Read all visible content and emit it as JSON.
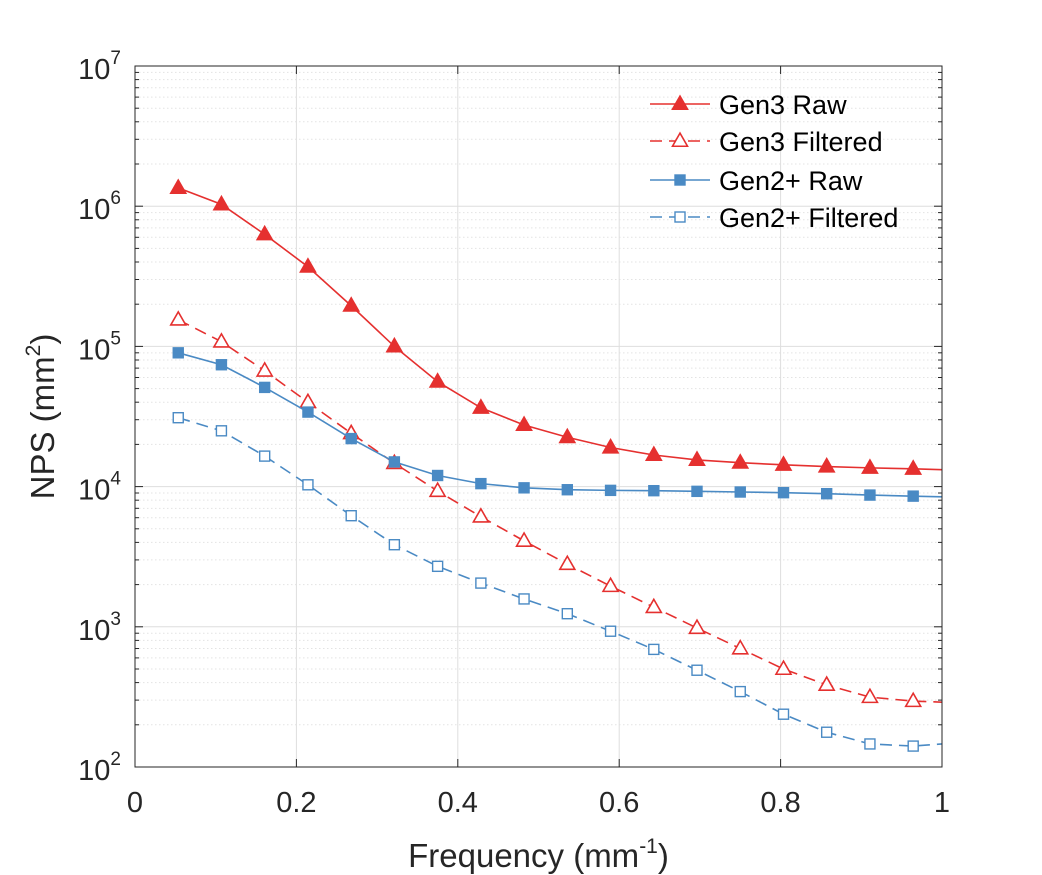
{
  "chart_data": {
    "type": "line",
    "xlabel": "Frequency (mm",
    "xlabel_sup": "-1",
    "xlabel_close": ")",
    "ylabel": "NPS (mm",
    "ylabel_sup": "2",
    "ylabel_close": ")",
    "xlim": [
      0,
      1
    ],
    "ylim": [
      100,
      10000000
    ],
    "yscale": "log",
    "grid": true,
    "legend_position": "top-right",
    "x_ticks": [
      {
        "value": 0,
        "label": "0"
      },
      {
        "value": 0.2,
        "label": "0.2"
      },
      {
        "value": 0.4,
        "label": "0.4"
      },
      {
        "value": 0.6,
        "label": "0.6"
      },
      {
        "value": 0.8,
        "label": "0.8"
      },
      {
        "value": 1,
        "label": "1"
      }
    ],
    "y_ticks": [
      {
        "value": 100,
        "base": "10",
        "exp": "2"
      },
      {
        "value": 1000,
        "base": "10",
        "exp": "3"
      },
      {
        "value": 10000,
        "base": "10",
        "exp": "4"
      },
      {
        "value": 100000,
        "base": "10",
        "exp": "5"
      },
      {
        "value": 1000000,
        "base": "10",
        "exp": "6"
      },
      {
        "value": 10000000,
        "base": "10",
        "exp": "7"
      }
    ],
    "x": [
      0.0536,
      0.1071,
      0.1607,
      0.2143,
      0.2679,
      0.3214,
      0.375,
      0.4286,
      0.4821,
      0.5357,
      0.5893,
      0.6429,
      0.6964,
      0.75,
      0.8036,
      0.8571,
      0.9107,
      0.9643,
      1.0
    ],
    "series": [
      {
        "name": "Gen3 Raw",
        "color": "#e5302f",
        "marker": "triangle",
        "filled": true,
        "dashed": false,
        "values": [
          1350000,
          1030000,
          630000,
          370000,
          195000,
          100000,
          56000,
          36500,
          27500,
          22500,
          19000,
          16800,
          15500,
          14800,
          14300,
          13900,
          13600,
          13400,
          13200
        ]
      },
      {
        "name": "Gen3 Filtered",
        "color": "#e5302f",
        "marker": "triangle",
        "filled": false,
        "dashed": true,
        "values": [
          155000,
          108000,
          67000,
          40000,
          24000,
          14700,
          9300,
          6100,
          4100,
          2800,
          1950,
          1380,
          980,
          700,
          500,
          385,
          315,
          295,
          290
        ]
      },
      {
        "name": "Gen2+ Raw",
        "color": "#4a8ac4",
        "marker": "square",
        "filled": true,
        "dashed": false,
        "values": [
          90000,
          74000,
          51000,
          34000,
          22000,
          15000,
          12000,
          10500,
          9800,
          9500,
          9400,
          9350,
          9250,
          9150,
          9050,
          8900,
          8700,
          8550,
          8450
        ]
      },
      {
        "name": "Gen2+ Filtered",
        "color": "#4a8ac4",
        "marker": "square",
        "filled": false,
        "dashed": true,
        "values": [
          31000,
          25000,
          16500,
          10300,
          6200,
          3850,
          2700,
          2050,
          1580,
          1240,
          930,
          690,
          490,
          345,
          238,
          177,
          146,
          141,
          146
        ]
      }
    ]
  }
}
